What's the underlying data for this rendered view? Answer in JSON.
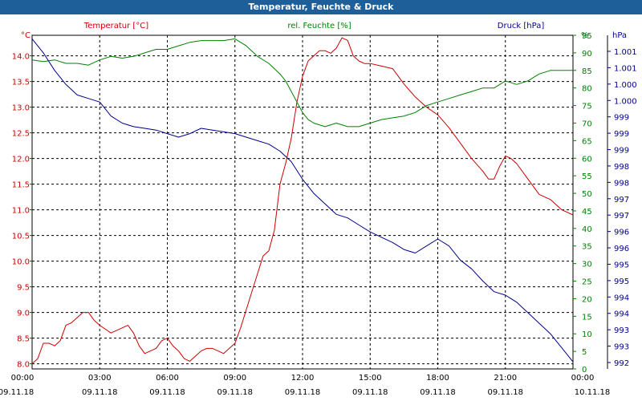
{
  "window": {
    "title": "Temperatur, Feuchte & Druck"
  },
  "chart_data": {
    "type": "line",
    "x_ticks": [
      {
        "time": "00:00",
        "date": "09.11.18"
      },
      {
        "time": "03:00",
        "date": "09.11.18"
      },
      {
        "time": "06:00",
        "date": "09.11.18"
      },
      {
        "time": "09:00",
        "date": "09.11.18"
      },
      {
        "time": "12:00",
        "date": "09.11.18"
      },
      {
        "time": "15:00",
        "date": "09.11.18"
      },
      {
        "time": "18:00",
        "date": "09.11.18"
      },
      {
        "time": "21:00",
        "date": "09.11.18"
      },
      {
        "time": "00:00",
        "date": "10.11.18"
      }
    ],
    "xlim_hours": [
      0,
      24
    ],
    "grid": true,
    "axes": {
      "temperature": {
        "label": "Temperatur [°C]",
        "unit": "°C",
        "ylim": [
          7.9,
          14.4
        ],
        "color": "#cc0000",
        "ticks": [
          "8.0",
          "8.5",
          "9.0",
          "9.5",
          "10.0",
          "10.5",
          "11.0",
          "11.5",
          "12.0",
          "12.5",
          "13.0",
          "13.5",
          "14.0"
        ]
      },
      "humidity": {
        "label": "rel. Feuchte [%]",
        "unit": "%",
        "ylim": [
          0,
          95
        ],
        "color": "#008000",
        "ticks": [
          "0",
          "5",
          "10",
          "15",
          "20",
          "25",
          "30",
          "35",
          "40",
          "45",
          "50",
          "55",
          "60",
          "65",
          "70",
          "75",
          "80",
          "85",
          "90",
          "95"
        ]
      },
      "pressure": {
        "label": "Druck [hPa]",
        "unit": "hPa",
        "ylim": [
          992,
          1001.5
        ],
        "color": "#00008b",
        "ticks": [
          "992",
          "993",
          "993",
          "994",
          "994",
          "995",
          "995",
          "996",
          "996",
          "997",
          "997",
          "998",
          "998",
          "999",
          "999",
          "999",
          "1.000",
          "1.000",
          "1.001",
          "1.001"
        ]
      }
    },
    "series": [
      {
        "name": "Temperatur [°C]",
        "axis": "temperature",
        "color": "#cc0000",
        "x": [
          0,
          0.25,
          0.5,
          0.75,
          1,
          1.25,
          1.5,
          1.75,
          2,
          2.25,
          2.5,
          2.75,
          3,
          3.5,
          4,
          4.25,
          4.5,
          4.75,
          5,
          5.25,
          5.5,
          5.75,
          6,
          6.25,
          6.5,
          6.75,
          7,
          7.25,
          7.5,
          7.75,
          8,
          8.25,
          8.5,
          8.75,
          9,
          9.25,
          9.5,
          9.75,
          10,
          10.25,
          10.5,
          10.75,
          11,
          11.25,
          11.5,
          11.75,
          12,
          12.25,
          12.5,
          12.75,
          13,
          13.25,
          13.5,
          13.75,
          14,
          14.25,
          14.5,
          14.75,
          15,
          15.5,
          16,
          16.5,
          17,
          17.5,
          18,
          18.5,
          19,
          19.5,
          20,
          20.25,
          20.5,
          20.75,
          21,
          21.25,
          21.5,
          22,
          22.5,
          23,
          23.5,
          24
        ],
        "values": [
          8.0,
          8.1,
          8.4,
          8.4,
          8.35,
          8.45,
          8.75,
          8.8,
          8.9,
          9.0,
          9.0,
          8.85,
          8.75,
          8.6,
          8.7,
          8.75,
          8.6,
          8.35,
          8.2,
          8.25,
          8.3,
          8.45,
          8.5,
          8.35,
          8.25,
          8.1,
          8.05,
          8.15,
          8.25,
          8.3,
          8.3,
          8.25,
          8.2,
          8.3,
          8.4,
          8.7,
          9.05,
          9.4,
          9.75,
          10.1,
          10.2,
          10.6,
          11.5,
          11.9,
          12.4,
          13.1,
          13.6,
          13.9,
          14.0,
          14.1,
          14.1,
          14.05,
          14.15,
          14.35,
          14.3,
          14.0,
          13.9,
          13.85,
          13.85,
          13.8,
          13.75,
          13.45,
          13.2,
          13.0,
          12.85,
          12.6,
          12.3,
          12.0,
          11.75,
          11.6,
          11.6,
          11.85,
          12.05,
          12.0,
          11.9,
          11.6,
          11.3,
          11.2,
          11.0,
          10.9
        ]
      },
      {
        "name": "rel. Feuchte [%]",
        "axis": "humidity",
        "color": "#008000",
        "x": [
          0,
          0.5,
          1,
          1.5,
          2,
          2.5,
          3,
          3.5,
          4,
          4.5,
          5,
          5.5,
          6,
          6.5,
          7,
          7.5,
          8,
          8.5,
          9,
          9.5,
          10,
          10.5,
          11,
          11.25,
          11.5,
          11.75,
          12,
          12.25,
          12.5,
          13,
          13.5,
          14,
          14.5,
          15,
          15.5,
          16,
          16.5,
          17,
          17.5,
          18,
          18.5,
          19,
          19.5,
          20,
          20.5,
          21,
          21.5,
          22,
          22.5,
          23,
          23.5,
          24
        ],
        "values": [
          88,
          87.5,
          88,
          87,
          87,
          86.5,
          88,
          89,
          88.5,
          89,
          90,
          91,
          91,
          92,
          93,
          93.5,
          93.5,
          93.5,
          94,
          92,
          89,
          87,
          84,
          82,
          79,
          76,
          73,
          71,
          70,
          69,
          70,
          69,
          69,
          70,
          71,
          71.5,
          72,
          73,
          75,
          76,
          77,
          78,
          79,
          80,
          80,
          82,
          81,
          82,
          84,
          85,
          85,
          85
        ]
      },
      {
        "name": "Druck [hPa]",
        "axis": "pressure",
        "color": "#00008b",
        "x": [
          0,
          0.5,
          1,
          1.5,
          2,
          2.5,
          3,
          3.5,
          4,
          4.5,
          5,
          5.5,
          6,
          6.5,
          7,
          7.5,
          8,
          8.5,
          9,
          9.5,
          10,
          10.5,
          11,
          11.5,
          12,
          12.5,
          13,
          13.5,
          14,
          14.5,
          15,
          15.5,
          16,
          16.5,
          17,
          17.5,
          18,
          18.5,
          19,
          19.5,
          20,
          20.5,
          21,
          21.5,
          22,
          22.5,
          23,
          23.5,
          24
        ],
        "values": [
          1001.4,
          1001.0,
          1000.5,
          1000.1,
          999.8,
          999.7,
          999.6,
          999.2,
          999.0,
          998.9,
          998.85,
          998.8,
          998.7,
          998.6,
          998.7,
          998.85,
          998.8,
          998.75,
          998.7,
          998.6,
          998.5,
          998.4,
          998.2,
          997.9,
          997.4,
          997.0,
          996.7,
          996.4,
          996.3,
          996.1,
          995.9,
          995.75,
          995.6,
          995.4,
          995.3,
          995.5,
          995.7,
          995.5,
          995.1,
          994.85,
          994.5,
          994.2,
          994.1,
          993.9,
          993.6,
          993.3,
          993.0,
          992.6,
          992.2
        ]
      }
    ]
  }
}
